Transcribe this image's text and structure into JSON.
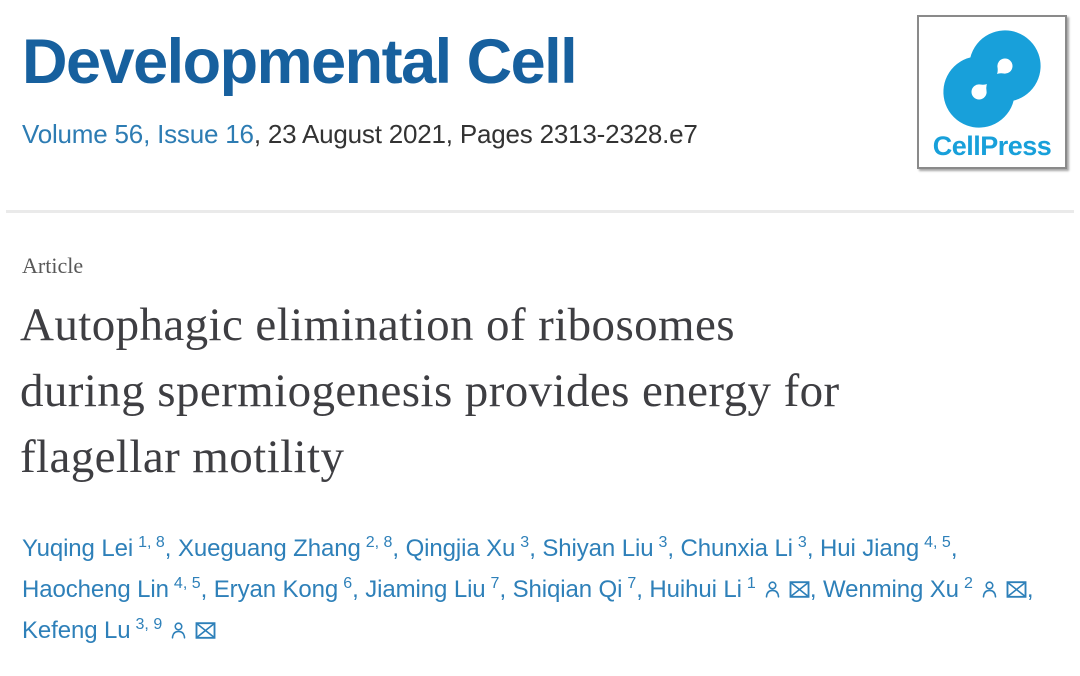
{
  "journal": {
    "title": "Developmental Cell",
    "citation": {
      "volume_issue": "Volume 56, Issue 16",
      "rest": ", 23 August 2021, Pages 2313-2328.e7"
    }
  },
  "publisher_logo": {
    "text": "CellPress",
    "icon": "cellpress-swirl-icon",
    "color": "#18a0da"
  },
  "article": {
    "type_label": "Article",
    "title_full": "Autophagic elimination of ribosomes during spermiogenesis provides energy for flagellar motility",
    "title_lines": [
      "Autophagic elimination of ribosomes",
      "during spermiogenesis provides energy for",
      "flagellar motility"
    ]
  },
  "authors": {
    "separator": ",",
    "icons": {
      "profile": "person-icon",
      "email": "envelope-icon"
    },
    "items": [
      {
        "name": "Yuqing Lei",
        "sup": "1, 8",
        "profile": false,
        "email": false
      },
      {
        "name": "Xueguang Zhang",
        "sup": "2, 8",
        "profile": false,
        "email": false
      },
      {
        "name": "Qingjia Xu",
        "sup": "3",
        "profile": false,
        "email": false
      },
      {
        "name": "Shiyan Liu",
        "sup": "3",
        "profile": false,
        "email": false
      },
      {
        "name": "Chunxia Li",
        "sup": "3",
        "profile": false,
        "email": false
      },
      {
        "name": "Hui Jiang",
        "sup": "4, 5",
        "profile": false,
        "email": false
      },
      {
        "name": "Haocheng Lin",
        "sup": "4, 5",
        "profile": false,
        "email": false
      },
      {
        "name": "Eryan Kong",
        "sup": "6",
        "profile": false,
        "email": false
      },
      {
        "name": "Jiaming Liu",
        "sup": "7",
        "profile": false,
        "email": false
      },
      {
        "name": "Shiqian Qi",
        "sup": "7",
        "profile": false,
        "email": false
      },
      {
        "name": "Huihui Li",
        "sup": "1",
        "profile": true,
        "email": true
      },
      {
        "name": "Wenming Xu",
        "sup": "2",
        "profile": true,
        "email": true
      },
      {
        "name": "Kefeng Lu",
        "sup": "3, 9",
        "profile": true,
        "email": true
      }
    ]
  },
  "colors": {
    "journal_title_blue": "#17609e",
    "link_blue": "#2d7cb3",
    "author_blue": "#2e80b9",
    "logo_cyan": "#18a0da",
    "title_gray": "#3e3e42",
    "body_gray": "#333333",
    "divider_gray": "#eaeaea"
  }
}
